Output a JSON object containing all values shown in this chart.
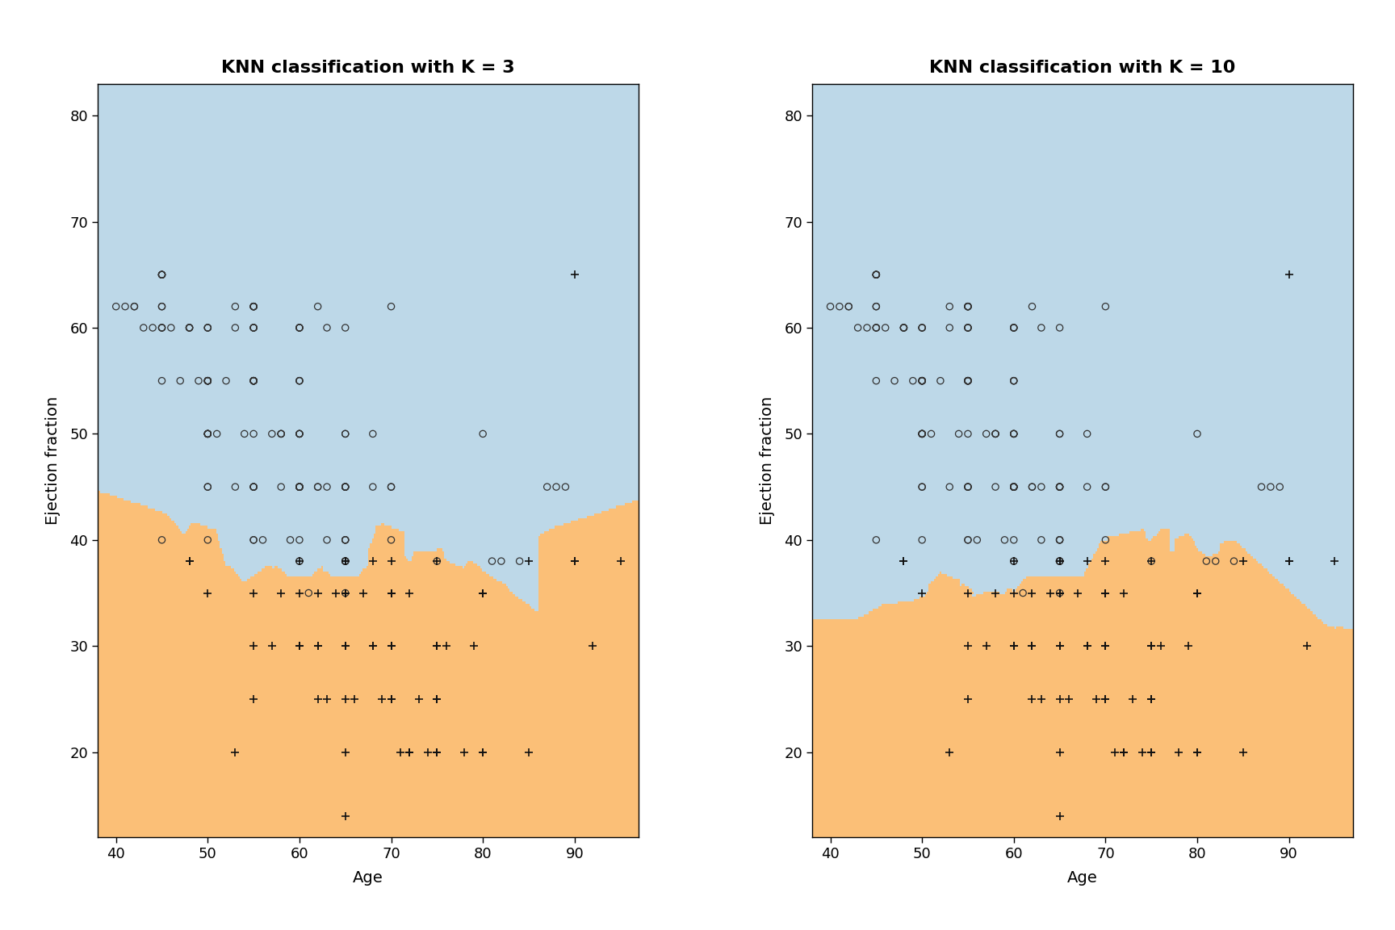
{
  "title_k3": "KNN classification with K = 3",
  "title_k10": "KNN classification with K = 10",
  "xlabel": "Age",
  "ylabel": "Ejection fraction",
  "xlim": [
    38,
    97
  ],
  "ylim": [
    12,
    83
  ],
  "xticks": [
    40,
    50,
    60,
    70,
    80,
    90
  ],
  "yticks": [
    20,
    30,
    40,
    50,
    60,
    70,
    80
  ],
  "color_death_bg": "#FBBF77",
  "color_survival_bg": "#BDD8E8",
  "title_fontsize": 16,
  "axis_label_fontsize": 14,
  "tick_fontsize": 13,
  "background_color": "#ffffff",
  "k_values": [
    3,
    10
  ],
  "age": [
    75,
    55,
    65,
    90,
    75,
    80,
    75,
    62,
    55,
    45,
    70,
    57,
    63,
    48,
    60,
    65,
    50,
    55,
    80,
    65,
    68,
    90,
    85,
    65,
    65,
    60,
    58,
    53,
    62,
    72,
    45,
    60,
    55,
    95,
    65,
    80,
    55,
    75,
    50,
    65,
    70,
    42,
    60,
    65,
    60,
    48,
    70,
    80,
    60,
    65,
    75,
    50,
    60,
    55,
    45,
    65,
    60,
    70,
    75,
    55,
    60,
    65,
    63,
    45,
    50,
    60,
    70,
    65,
    50,
    55,
    62,
    53,
    70,
    65,
    60,
    75,
    50,
    45,
    58,
    68,
    65,
    60,
    50,
    45,
    55,
    68,
    72,
    65,
    70,
    60,
    55,
    75,
    80,
    50,
    65,
    60,
    58,
    50,
    55,
    65,
    70,
    75,
    45,
    60,
    50,
    65,
    55,
    50,
    62,
    70,
    75,
    48,
    60,
    65,
    53,
    70,
    65,
    60,
    50,
    55,
    45,
    70,
    65,
    60,
    55,
    75,
    55,
    60,
    70,
    65,
    55,
    60,
    65,
    50,
    55,
    65,
    70,
    60,
    55,
    50,
    68,
    75,
    60,
    55,
    65,
    50,
    70,
    62,
    55,
    60,
    45,
    50,
    65,
    70,
    58,
    63,
    48,
    72,
    65,
    55,
    50,
    60,
    65,
    70,
    55,
    60,
    45,
    50,
    55,
    65,
    70,
    60,
    55,
    65,
    62,
    48,
    55,
    60,
    65,
    50,
    70,
    75,
    80,
    90,
    42,
    45,
    55,
    60,
    65,
    70,
    53,
    62,
    68,
    58,
    72,
    75,
    85,
    50,
    55,
    60,
    65,
    70,
    45,
    48,
    52,
    57,
    63,
    67,
    73,
    78,
    82,
    88,
    40,
    43,
    47,
    51,
    56,
    61,
    66,
    71,
    76,
    81,
    87,
    92,
    44,
    49,
    54,
    59,
    64,
    69,
    74,
    79,
    84,
    89,
    41,
    46,
    50,
    65,
    60,
    55,
    70,
    40,
    60,
    45,
    55,
    65,
    70,
    50,
    60,
    55,
    45,
    40,
    65,
    70,
    75,
    60,
    55,
    50,
    45,
    40,
    70,
    65,
    60,
    55,
    50,
    45,
    40,
    65,
    60,
    55,
    50,
    45,
    75,
    80,
    85,
    90,
    95,
    42,
    47,
    52,
    57,
    62,
    67,
    72,
    77,
    82,
    87,
    92,
    44,
    49,
    54,
    59,
    64,
    69,
    74,
    79,
    84,
    89,
    41,
    46
  ],
  "ef": [
    38,
    25,
    20,
    65,
    20,
    35,
    38,
    25,
    60,
    55,
    40,
    30,
    60,
    60,
    45,
    50,
    55,
    60,
    20,
    35,
    45,
    38,
    20,
    14,
    35,
    30,
    50,
    60,
    62,
    20,
    60,
    38,
    62,
    38,
    38,
    35,
    35,
    25,
    35,
    30,
    45,
    62,
    60,
    45,
    50,
    38,
    45,
    50,
    30,
    60,
    30,
    50,
    45,
    55,
    62,
    25,
    45,
    38,
    30,
    30,
    40,
    38,
    25,
    40,
    45,
    60,
    62,
    30,
    40,
    50,
    45,
    20,
    35,
    45,
    50,
    25,
    55,
    60,
    35,
    30,
    35,
    55,
    45,
    65,
    40,
    50,
    35,
    45,
    30,
    55,
    62,
    20,
    35,
    50,
    45,
    60,
    50,
    55,
    62,
    35,
    30,
    25,
    65,
    38,
    50,
    45,
    55,
    60,
    30,
    35,
    20,
    38,
    45,
    50,
    62,
    35,
    40,
    55,
    60,
    45,
    65,
    30,
    38,
    50,
    55,
    20,
    62,
    45,
    30,
    38,
    62,
    50,
    38,
    55,
    45,
    35,
    30,
    45,
    55,
    60,
    38,
    25,
    45,
    55,
    35,
    50,
    30,
    45,
    60,
    38,
    65,
    55,
    38,
    30,
    50,
    45,
    60,
    20,
    35,
    45,
    55,
    30,
    38,
    25,
    60,
    45,
    62,
    50,
    40,
    35,
    30,
    45,
    55,
    40,
    30,
    60,
    45,
    35,
    40,
    55,
    25,
    30,
    20,
    38,
    62,
    60,
    55,
    45,
    35,
    30,
    45,
    35,
    30,
    45,
    20,
    25,
    38,
    50,
    55,
    60,
    35,
    30,
    65,
    60,
    55,
    50,
    40,
    35,
    25,
    20,
    38,
    45,
    62,
    60,
    55,
    50,
    40,
    35,
    25,
    20,
    30,
    38,
    45,
    30,
    60,
    55,
    50,
    40,
    35,
    25,
    20,
    30,
    38,
    45,
    62,
    60,
    45,
    40,
    50,
    55,
    38,
    62,
    35,
    45,
    55,
    40,
    30,
    50,
    60,
    45,
    65,
    55,
    40,
    30,
    25,
    45,
    55,
    60,
    65,
    50,
    35,
    40,
    45,
    50,
    55,
    60,
    65,
    38,
    45,
    50,
    55,
    60,
    30,
    25,
    20,
    38,
    45,
    50,
    55,
    60,
    35,
    30,
    25,
    20,
    38,
    45,
    50,
    55,
    60,
    35,
    30,
    25,
    20,
    38,
    45,
    50,
    55,
    60,
    35,
    30
  ],
  "death": [
    1,
    1,
    1,
    1,
    1,
    1,
    0,
    1,
    0,
    0,
    0,
    1,
    0,
    0,
    0,
    0,
    0,
    0,
    1,
    1,
    0,
    1,
    1,
    1,
    1,
    1,
    0,
    0,
    0,
    1,
    0,
    0,
    0,
    1,
    1,
    1,
    1,
    1,
    1,
    1,
    0,
    0,
    0,
    0,
    0,
    1,
    0,
    0,
    1,
    0,
    1,
    0,
    0,
    0,
    0,
    1,
    0,
    1,
    1,
    1,
    0,
    1,
    1,
    0,
    0,
    0,
    0,
    1,
    0,
    0,
    0,
    1,
    1,
    0,
    0,
    1,
    0,
    0,
    1,
    1,
    1,
    0,
    0,
    0,
    0,
    0,
    1,
    0,
    1,
    0,
    0,
    1,
    1,
    0,
    0,
    0,
    0,
    0,
    0,
    1,
    1,
    1,
    0,
    0,
    0,
    0,
    0,
    0,
    1,
    1,
    1,
    1,
    0,
    0,
    0,
    1,
    0,
    0,
    0,
    0,
    0,
    1,
    0,
    0,
    0,
    1,
    0,
    0,
    1,
    0,
    0,
    0,
    0,
    0,
    0,
    0,
    1,
    0,
    0,
    0,
    1,
    1,
    0,
    0,
    1,
    0,
    1,
    0,
    0,
    1,
    0,
    0,
    0,
    1,
    0,
    0,
    0,
    1,
    1,
    0,
    0,
    1,
    0,
    1,
    0,
    0,
    0,
    0,
    0,
    1,
    1,
    0,
    0,
    0,
    1,
    0,
    0,
    1,
    0,
    0,
    1,
    1,
    1,
    1,
    0,
    0,
    0,
    0,
    1,
    1,
    0,
    1,
    1,
    0,
    1,
    1,
    1,
    0,
    0,
    0,
    1,
    1,
    0,
    0,
    0,
    0,
    0,
    1,
    1,
    1,
    0,
    0,
    0,
    0,
    0,
    0,
    0,
    0,
    1,
    1,
    1,
    0,
    0,
    1,
    0,
    0,
    0,
    0,
    1,
    1,
    1,
    1,
    0,
    0,
    0,
    0,
    0,
    1,
    0,
    0,
    0,
    0,
    1,
    0,
    0,
    1,
    1,
    0,
    0,
    0,
    0,
    1,
    1,
    1,
    1,
    0,
    0,
    0,
    0,
    0,
    1,
    1,
    1,
    0,
    0,
    0,
    0,
    1,
    0,
    0,
    0,
    1,
    1,
    1,
    1,
    0,
    0,
    0,
    0,
    1,
    1,
    1,
    0,
    0,
    0,
    0,
    1,
    1,
    1,
    0,
    0,
    0,
    0,
    1,
    1,
    1,
    0,
    0,
    0,
    0
  ]
}
